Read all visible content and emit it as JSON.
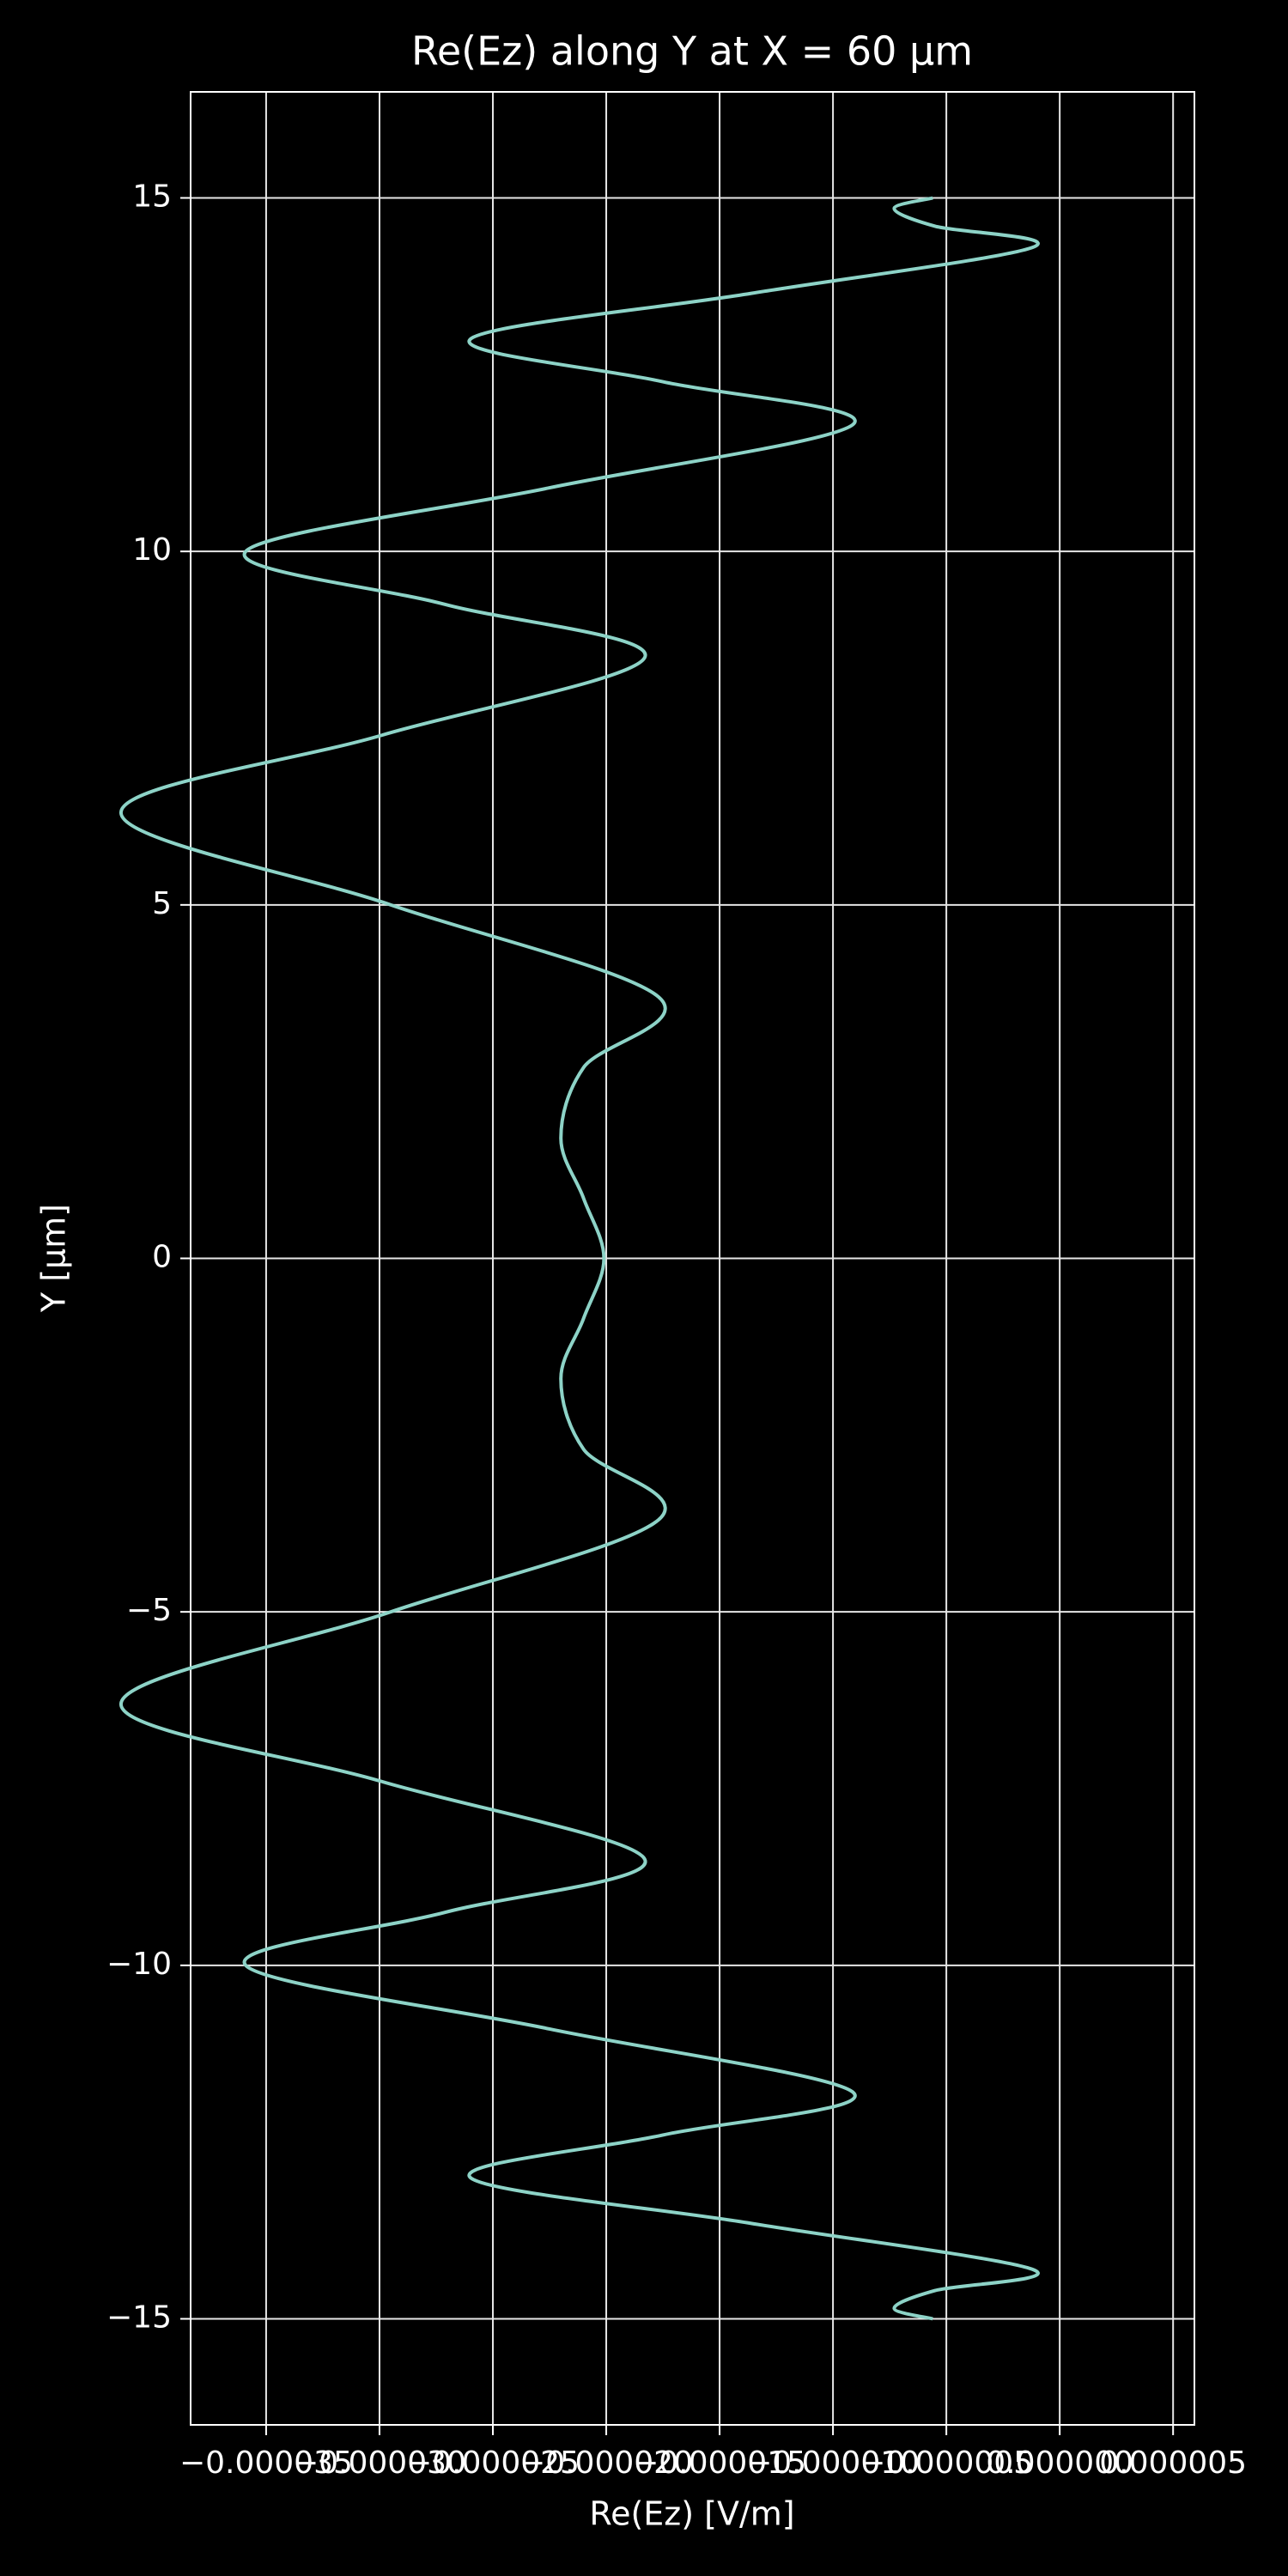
{
  "chart_data": {
    "type": "line",
    "orientation": "vertical",
    "title": "Re(Ez) along Y at X = 60 µm",
    "xlabel": "Re(Ez) [V/m]",
    "ylabel": "Y [µm]",
    "y": [
      15,
      14.85,
      14.6,
      14.3,
      13.65,
      13,
      12.4,
      11.8,
      10.9,
      10,
      9.25,
      8.5,
      7.4,
      6.3,
      5,
      3.7,
      2.7,
      1.7,
      0.85,
      0,
      -0.85,
      -1.7,
      -2.7,
      -3.7,
      -5,
      -6.3,
      -7.4,
      -8.5,
      -9.25,
      -10,
      -10.9,
      -11.8,
      -12.4,
      -13,
      -13.65,
      -14.3,
      -14.6,
      -14.85,
      -15
    ],
    "series": [
      {
        "color": "#8dd3c7",
        "values": [
          -5.6e-06,
          -7.3e-06,
          -5.5e-06,
          -1.2e-06,
          -1.36e-05,
          -2.6e-05,
          -1.75e-05,
          -9.1e-06,
          -2.25e-05,
          -3.59e-05,
          -2.71e-05,
          -1.83e-05,
          -2.99e-05,
          -4.14e-05,
          -2.95e-05,
          -1.77e-05,
          -2.1e-05,
          -2.2e-05,
          -2.1e-05,
          -2.01e-05,
          -2.1e-05,
          -2.2e-05,
          -2.1e-05,
          -1.77e-05,
          -2.95e-05,
          -4.14e-05,
          -2.99e-05,
          -1.83e-05,
          -2.71e-05,
          -3.59e-05,
          -2.25e-05,
          -9.1e-06,
          -1.75e-05,
          -2.6e-05,
          -1.36e-05,
          -1.2e-06,
          -5.5e-06,
          -7.3e-06,
          -5.6e-06
        ]
      }
    ],
    "xlim": [
      -3.833e-05,
      5.94e-06
    ],
    "ylim": [
      -16.5,
      16.5
    ],
    "xticks": [
      {
        "value": -3.5e-05,
        "label": "−0.000035"
      },
      {
        "value": -3e-05,
        "label": "−0.000030"
      },
      {
        "value": -2.5e-05,
        "label": "−0.000025"
      },
      {
        "value": -2e-05,
        "label": "−0.000020"
      },
      {
        "value": -1.5e-05,
        "label": "−0.000015"
      },
      {
        "value": -1e-05,
        "label": "−0.000010"
      },
      {
        "value": -5e-06,
        "label": "−0.000005"
      },
      {
        "value": 0,
        "label": "0.000000"
      },
      {
        "value": 5e-06,
        "label": "0.000005"
      }
    ],
    "yticks": [
      {
        "value": -15,
        "label": "−15"
      },
      {
        "value": -10,
        "label": "−10"
      },
      {
        "value": -5,
        "label": "−5"
      },
      0,
      5,
      10,
      15
    ],
    "grid": true
  }
}
